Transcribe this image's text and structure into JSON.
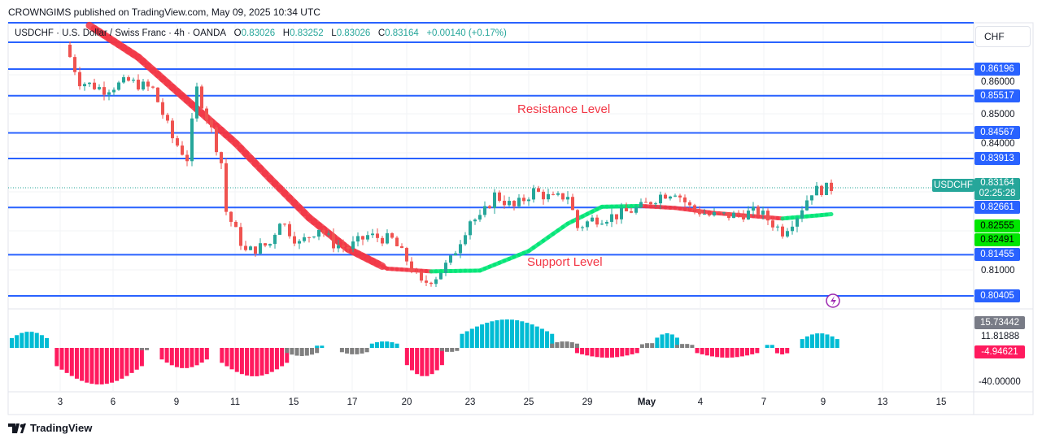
{
  "header": {
    "published": "CROWNGIMS published on TradingView.com, May 09, 2025 10:34 UTC"
  },
  "legend": {
    "symbol": "USDCHF · U.S. Dollar / Swiss Franc · 4h · OANDA",
    "o_label": "O",
    "o": "0.83026",
    "h_label": "H",
    "h": "0.83252",
    "l_label": "L",
    "l": "0.83026",
    "c_label": "C",
    "c": "0.83164",
    "change": "+0.00140 (+0.17%)"
  },
  "axis": {
    "currency": "CHF",
    "ticks": [
      "0.86000",
      "0.85000",
      "0.84000",
      "0.81000"
    ],
    "levels": [
      {
        "label": "0.86196",
        "price": 0.86196
      },
      {
        "label": "0.85517",
        "price": 0.85517
      },
      {
        "label": "0.84567",
        "price": 0.84567
      },
      {
        "label": "0.83913",
        "price": 0.83913
      },
      {
        "label": "0.82661",
        "price": 0.82661
      },
      {
        "label": "0.81455",
        "price": 0.81455
      },
      {
        "label": "0.80405",
        "price": 0.80405
      }
    ],
    "ma_labels": [
      "0.82555",
      "0.82491"
    ],
    "symbol_tag": "USDCHF",
    "last_price": "0.83164",
    "countdown": "02:25:28",
    "osc": {
      "top": "15.73442",
      "mid": "11.81888",
      "neg": "-4.94621",
      "low": "-40.00000"
    }
  },
  "annotations": {
    "resistance": "Resistance Level",
    "support": "Support Level"
  },
  "time_labels": [
    "3",
    "6",
    "9",
    "11",
    "15",
    "17",
    "20",
    "23",
    "25",
    "29",
    "May",
    "4",
    "7",
    "9",
    "13",
    "15"
  ],
  "footer": {
    "brand": "TradingView"
  },
  "colors": {
    "up": "#26a69a",
    "down": "#ef5350",
    "level": "#2962ff",
    "ma_down": "#f23645",
    "ma_up": "#00e676",
    "osc_pos": "#00bcd4",
    "osc_neg": "#ff1a5e",
    "osc_gray": "#808080"
  },
  "chart_data": {
    "type": "candlestick",
    "symbol": "USDCHF",
    "timeframe": "4h",
    "close_path": [
      [
        0,
        0.86819
      ],
      [
        3,
        0.85885
      ],
      [
        8,
        0.85677
      ],
      [
        13,
        0.85885
      ],
      [
        18,
        0.85677
      ],
      [
        22,
        0.84431
      ],
      [
        25,
        0.83913
      ],
      [
        27,
        0.85677
      ],
      [
        30,
        0.84639
      ],
      [
        32,
        0.83809
      ],
      [
        33,
        0.82563
      ],
      [
        37,
        0.81525
      ],
      [
        42,
        0.81733
      ],
      [
        44,
        0.82355
      ],
      [
        48,
        0.81733
      ],
      [
        52,
        0.82148
      ],
      [
        55,
        0.81733
      ],
      [
        58,
        0.81629
      ],
      [
        62,
        0.8194
      ],
      [
        67,
        0.81836
      ],
      [
        70,
        0.81317
      ],
      [
        73,
        0.80695
      ],
      [
        76,
        0.80903
      ],
      [
        79,
        0.81317
      ],
      [
        83,
        0.82355
      ],
      [
        85,
        0.82355
      ],
      [
        88,
        0.82978
      ],
      [
        92,
        0.82667
      ],
      [
        96,
        0.83082
      ],
      [
        100,
        0.82874
      ],
      [
        103,
        0.82978
      ],
      [
        105,
        0.82148
      ],
      [
        108,
        0.82355
      ],
      [
        113,
        0.82459
      ],
      [
        118,
        0.82667
      ],
      [
        122,
        0.82978
      ],
      [
        125,
        0.83082
      ],
      [
        128,
        0.82667
      ],
      [
        132,
        0.82459
      ],
      [
        137,
        0.82459
      ],
      [
        142,
        0.82563
      ],
      [
        147,
        0.82044
      ],
      [
        150,
        0.82459
      ],
      [
        153,
        0.83082
      ],
      [
        157,
        0.83164
      ]
    ],
    "ma_path": [
      [
        5,
        0.8731
      ],
      [
        15,
        0.865
      ],
      [
        25,
        0.854
      ],
      [
        35,
        0.843
      ],
      [
        42,
        0.834
      ],
      [
        50,
        0.824
      ],
      [
        58,
        0.816
      ],
      [
        66,
        0.811
      ],
      [
        75,
        0.8103
      ],
      [
        85,
        0.8105
      ],
      [
        95,
        0.8155
      ],
      [
        103,
        0.8225
      ],
      [
        110,
        0.8268
      ],
      [
        118,
        0.827
      ],
      [
        125,
        0.8265
      ],
      [
        133,
        0.8252
      ],
      [
        140,
        0.8245
      ],
      [
        147,
        0.8238
      ],
      [
        157,
        0.8249
      ]
    ],
    "histogram": [
      [
        0,
        7,
        "pos",
        20
      ],
      [
        9,
        26,
        "neg",
        -45
      ],
      [
        26,
        27,
        "gray",
        -3
      ],
      [
        30,
        39,
        "neg",
        -25
      ],
      [
        42,
        55,
        "neg",
        -35
      ],
      [
        55,
        61,
        "gray",
        -10
      ],
      [
        61,
        62,
        "pos",
        3
      ],
      [
        55,
        55,
        "gray",
        0
      ],
      [
        66,
        71,
        "gray",
        -8
      ],
      [
        72,
        77,
        "pos",
        8
      ],
      [
        79,
        86,
        "neg",
        -35
      ],
      [
        86,
        89,
        "gray",
        -5
      ],
      [
        90,
        108,
        "pos",
        35
      ],
      [
        108,
        113,
        "gray",
        8
      ],
      [
        113,
        125,
        "neg",
        -12
      ],
      [
        126,
        129,
        "gray",
        6
      ],
      [
        129,
        133,
        "pos",
        18
      ],
      [
        133,
        136,
        "gray",
        5
      ],
      [
        137,
        149,
        "neg",
        -12
      ],
      [
        151,
        152,
        "pos",
        4
      ],
      [
        153,
        155,
        "neg",
        -8
      ],
      [
        158,
        165,
        "pos",
        18
      ]
    ]
  }
}
